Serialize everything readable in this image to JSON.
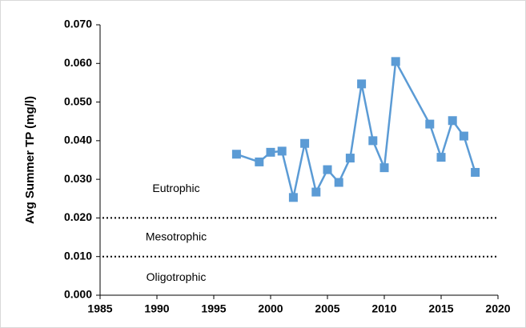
{
  "chart_data": {
    "type": "line",
    "y_label": "Avg Summer TP (mg/l)",
    "x": [
      1997,
      1999,
      2000,
      2001,
      2002,
      2003,
      2004,
      2005,
      2006,
      2007,
      2008,
      2009,
      2010,
      2011,
      2014,
      2015,
      2016,
      2017,
      2018
    ],
    "series": [
      {
        "color": "#5b9bd5",
        "values": [
          0.0365,
          0.0345,
          0.037,
          0.0373,
          0.0253,
          0.0393,
          0.0267,
          0.0325,
          0.0292,
          0.0355,
          0.0547,
          0.04,
          0.033,
          0.0605,
          0.0443,
          0.0357,
          0.0452,
          0.0412,
          0.0318
        ]
      }
    ],
    "xlim": [
      1985,
      2020
    ],
    "xticks": [
      1985,
      1990,
      1995,
      2000,
      2005,
      2010,
      2015,
      2020
    ],
    "ylim": [
      0,
      0.07
    ],
    "yticks": [
      {
        "value": 0,
        "label": "0.000"
      },
      {
        "value": 0.01,
        "label": "0.010"
      },
      {
        "value": 0.02,
        "label": "0.020"
      },
      {
        "value": 0.03,
        "label": "0.030"
      },
      {
        "value": 0.04,
        "label": "0.040"
      },
      {
        "value": 0.05,
        "label": "0.050"
      },
      {
        "value": 0.06,
        "label": "0.060"
      },
      {
        "value": 0.07,
        "label": "0.070"
      }
    ],
    "thresholds": [
      0.02,
      0.01
    ],
    "annotations": [
      {
        "text": "Eutrophic",
        "y": 0.0275
      },
      {
        "text": "Mesotrophic",
        "y": 0.015
      },
      {
        "text": "Oligotrophic",
        "y": 0.0045
      }
    ],
    "grid": false
  }
}
